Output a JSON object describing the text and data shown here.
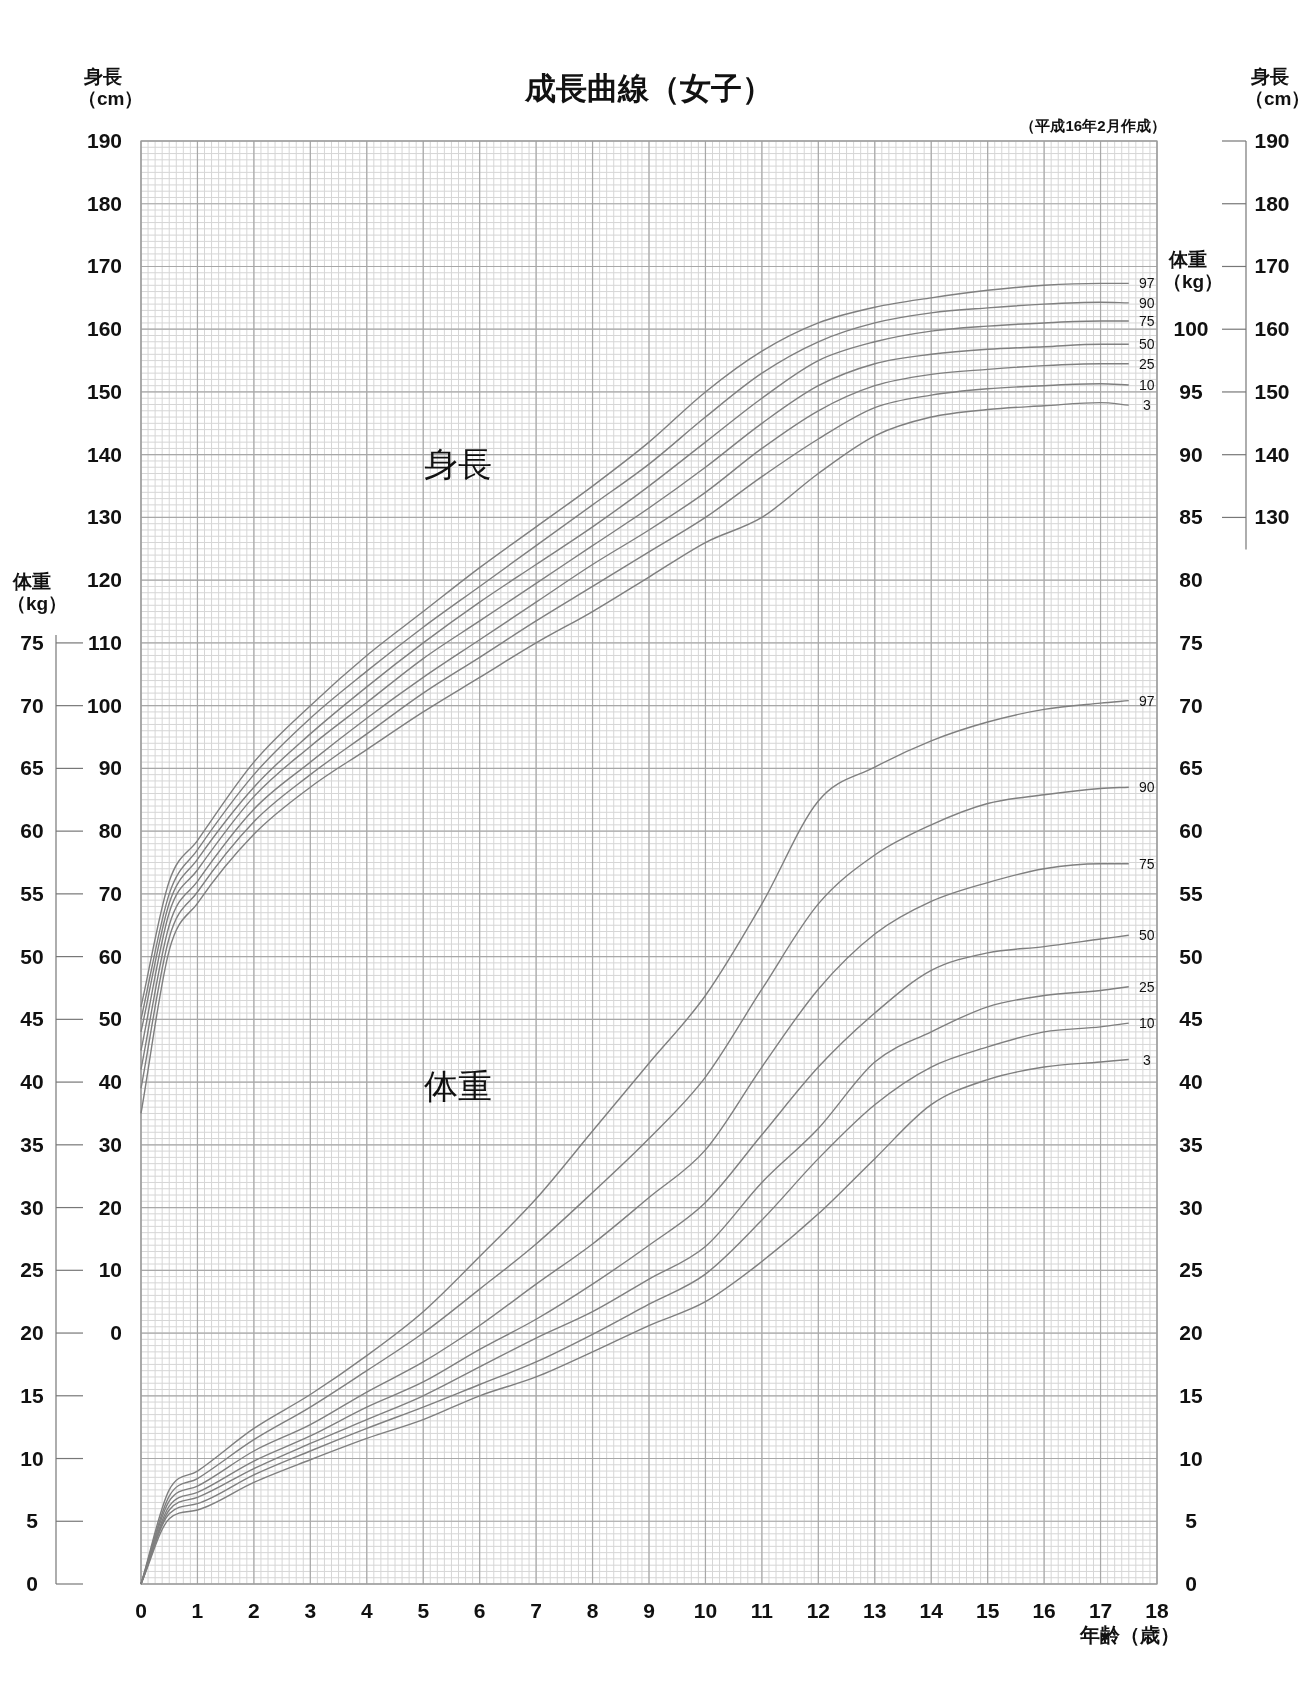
{
  "chart_data": [
    {
      "type": "line",
      "title": "成長曲線（女子）",
      "xlabel": "年齢（歳）",
      "ylabel": "体重（kg）",
      "y2label": "体重（kg）",
      "annotations": [
        "（平成16年2月作成）",
        "体重"
      ],
      "x": [
        0,
        0.5,
        1,
        2,
        3,
        4,
        5,
        6,
        7,
        8,
        9,
        10,
        11,
        12,
        13,
        14,
        15,
        16,
        17,
        17.5
      ],
      "xlim": [
        0,
        18
      ],
      "xticks": [
        0,
        1,
        2,
        3,
        4,
        5,
        6,
        7,
        8,
        9,
        10,
        11,
        12,
        13,
        14,
        15,
        16,
        17,
        18
      ],
      "ylim": [
        0,
        115
      ],
      "yticks": [
        0,
        5,
        10,
        15,
        20,
        25,
        30,
        35,
        40,
        45,
        50,
        55,
        60,
        65,
        70,
        75
      ],
      "y2lim": [
        0,
        115
      ],
      "y2ticks": [
        0,
        5,
        10,
        15,
        20,
        25,
        30,
        35,
        40,
        45,
        50,
        55,
        60,
        65,
        70,
        75,
        80,
        85,
        90,
        95,
        100
      ],
      "grid": true,
      "marker": "none",
      "line_style": "solid",
      "series": [
        {
          "name": "97",
          "color": "#7f7f7f",
          "values": [
            0,
            7.5,
            9.0,
            12.4,
            15.1,
            18.2,
            21.7,
            26.1,
            30.7,
            36.1,
            41.5,
            46.9,
            54.2,
            62.4,
            65.1,
            67.2,
            68.7,
            69.7,
            70.2,
            70.4
          ]
        },
        {
          "name": "90",
          "color": "#7f7f7f",
          "values": [
            0,
            7.0,
            8.4,
            11.5,
            14.1,
            17.0,
            20.0,
            23.5,
            27.1,
            31.2,
            35.5,
            40.4,
            47.4,
            54.2,
            58.1,
            60.5,
            62.2,
            62.9,
            63.4,
            63.5
          ]
        },
        {
          "name": "75",
          "color": "#7f7f7f",
          "values": [
            0,
            6.6,
            7.8,
            10.6,
            12.7,
            15.3,
            17.7,
            20.6,
            23.9,
            27.1,
            30.8,
            34.6,
            41.2,
            47.4,
            51.8,
            54.4,
            55.9,
            57.0,
            57.4,
            57.4
          ]
        },
        {
          "name": "50",
          "color": "#7f7f7f",
          "values": [
            0,
            6.2,
            7.3,
            9.8,
            11.8,
            14.1,
            16.1,
            18.7,
            21.1,
            23.9,
            27.0,
            30.4,
            35.8,
            41.2,
            45.5,
            48.9,
            50.3,
            50.8,
            51.4,
            51.7
          ]
        },
        {
          "name": "25",
          "color": "#7f7f7f",
          "values": [
            0,
            5.9,
            6.9,
            9.2,
            11.2,
            13.1,
            15.0,
            17.3,
            19.6,
            21.7,
            24.3,
            26.9,
            32.0,
            36.3,
            41.6,
            44.0,
            46.0,
            46.9,
            47.3,
            47.6
          ]
        },
        {
          "name": "10",
          "color": "#7f7f7f",
          "values": [
            0,
            5.6,
            6.4,
            8.7,
            10.6,
            12.4,
            14.1,
            15.9,
            17.7,
            19.9,
            22.3,
            24.7,
            29.0,
            33.9,
            38.2,
            41.2,
            42.8,
            44.0,
            44.4,
            44.7
          ]
        },
        {
          "name": "3",
          "color": "#7f7f7f",
          "values": [
            0,
            5.2,
            5.9,
            8.1,
            9.9,
            11.6,
            13.1,
            15.0,
            16.5,
            18.5,
            20.6,
            22.5,
            25.7,
            29.5,
            33.9,
            38.2,
            40.2,
            41.2,
            41.6,
            41.8
          ]
        }
      ]
    },
    {
      "type": "line",
      "ylabel": "身長（cm）",
      "y2label": "身長（cm）",
      "annotations": [
        "身長"
      ],
      "x": [
        0,
        0.5,
        1,
        2,
        3,
        4,
        5,
        6,
        7,
        8,
        9,
        10,
        11,
        12,
        13,
        14,
        15,
        16,
        17,
        17.5
      ],
      "xlim": [
        0,
        18
      ],
      "tick_labels": "y",
      "ylim": [
        -40,
        190
      ],
      "yticks": [
        0,
        10,
        20,
        30,
        40,
        50,
        60,
        70,
        80,
        90,
        100,
        110,
        120,
        130,
        140,
        150,
        160,
        170,
        180,
        190
      ],
      "y2lim": [
        -40,
        190
      ],
      "y2ticks": [
        130,
        140,
        150,
        160,
        170,
        180,
        190
      ],
      "marker": "none",
      "line_style": "solid",
      "series": [
        {
          "name": "97",
          "color": "#7f7f7f",
          "values": [
            52,
            72,
            78.5,
            91,
            100,
            108,
            115,
            122,
            128.5,
            135,
            142,
            150,
            156.5,
            161,
            163.5,
            165,
            166.2,
            167,
            167.3,
            167.3
          ]
        },
        {
          "name": "90",
          "color": "#7f7f7f",
          "values": [
            50,
            70,
            77,
            89,
            98,
            105.5,
            112.5,
            119,
            125.5,
            132,
            138.5,
            146,
            153,
            158,
            161,
            162.6,
            163.4,
            164,
            164.3,
            164.2
          ]
        },
        {
          "name": "75",
          "color": "#7f7f7f",
          "values": [
            48,
            68.5,
            75.5,
            87,
            95.5,
            103,
            110,
            116.5,
            122.5,
            128.5,
            135,
            142,
            149,
            155,
            158,
            159.7,
            160.5,
            161,
            161.3,
            161.3
          ]
        },
        {
          "name": "50",
          "color": "#7f7f7f",
          "values": [
            45,
            67,
            73.8,
            85.5,
            93.5,
            100.5,
            107.5,
            113.5,
            119.5,
            125.5,
            131.5,
            138,
            145,
            151,
            154.5,
            156,
            156.8,
            157.2,
            157.6,
            157.6
          ]
        },
        {
          "name": "25",
          "color": "#7f7f7f",
          "values": [
            42,
            65,
            72,
            83.5,
            91,
            98,
            104.5,
            110.5,
            116.5,
            122.5,
            128,
            134,
            141,
            147,
            151,
            152.8,
            153.6,
            154.2,
            154.5,
            154.5
          ]
        },
        {
          "name": "10",
          "color": "#7f7f7f",
          "values": [
            39,
            63,
            70.3,
            81.5,
            89,
            95.5,
            102,
            107.7,
            113.5,
            119,
            124.5,
            130,
            136.5,
            142.5,
            147.5,
            149.5,
            150.5,
            151,
            151.3,
            151.1
          ]
        },
        {
          "name": "3",
          "color": "#7f7f7f",
          "values": [
            35,
            61,
            68.5,
            79.5,
            87,
            93,
            99,
            104.5,
            110,
            115,
            120.5,
            126,
            130,
            137,
            143,
            146,
            147.2,
            147.8,
            148.3,
            147.9
          ]
        }
      ]
    }
  ]
}
